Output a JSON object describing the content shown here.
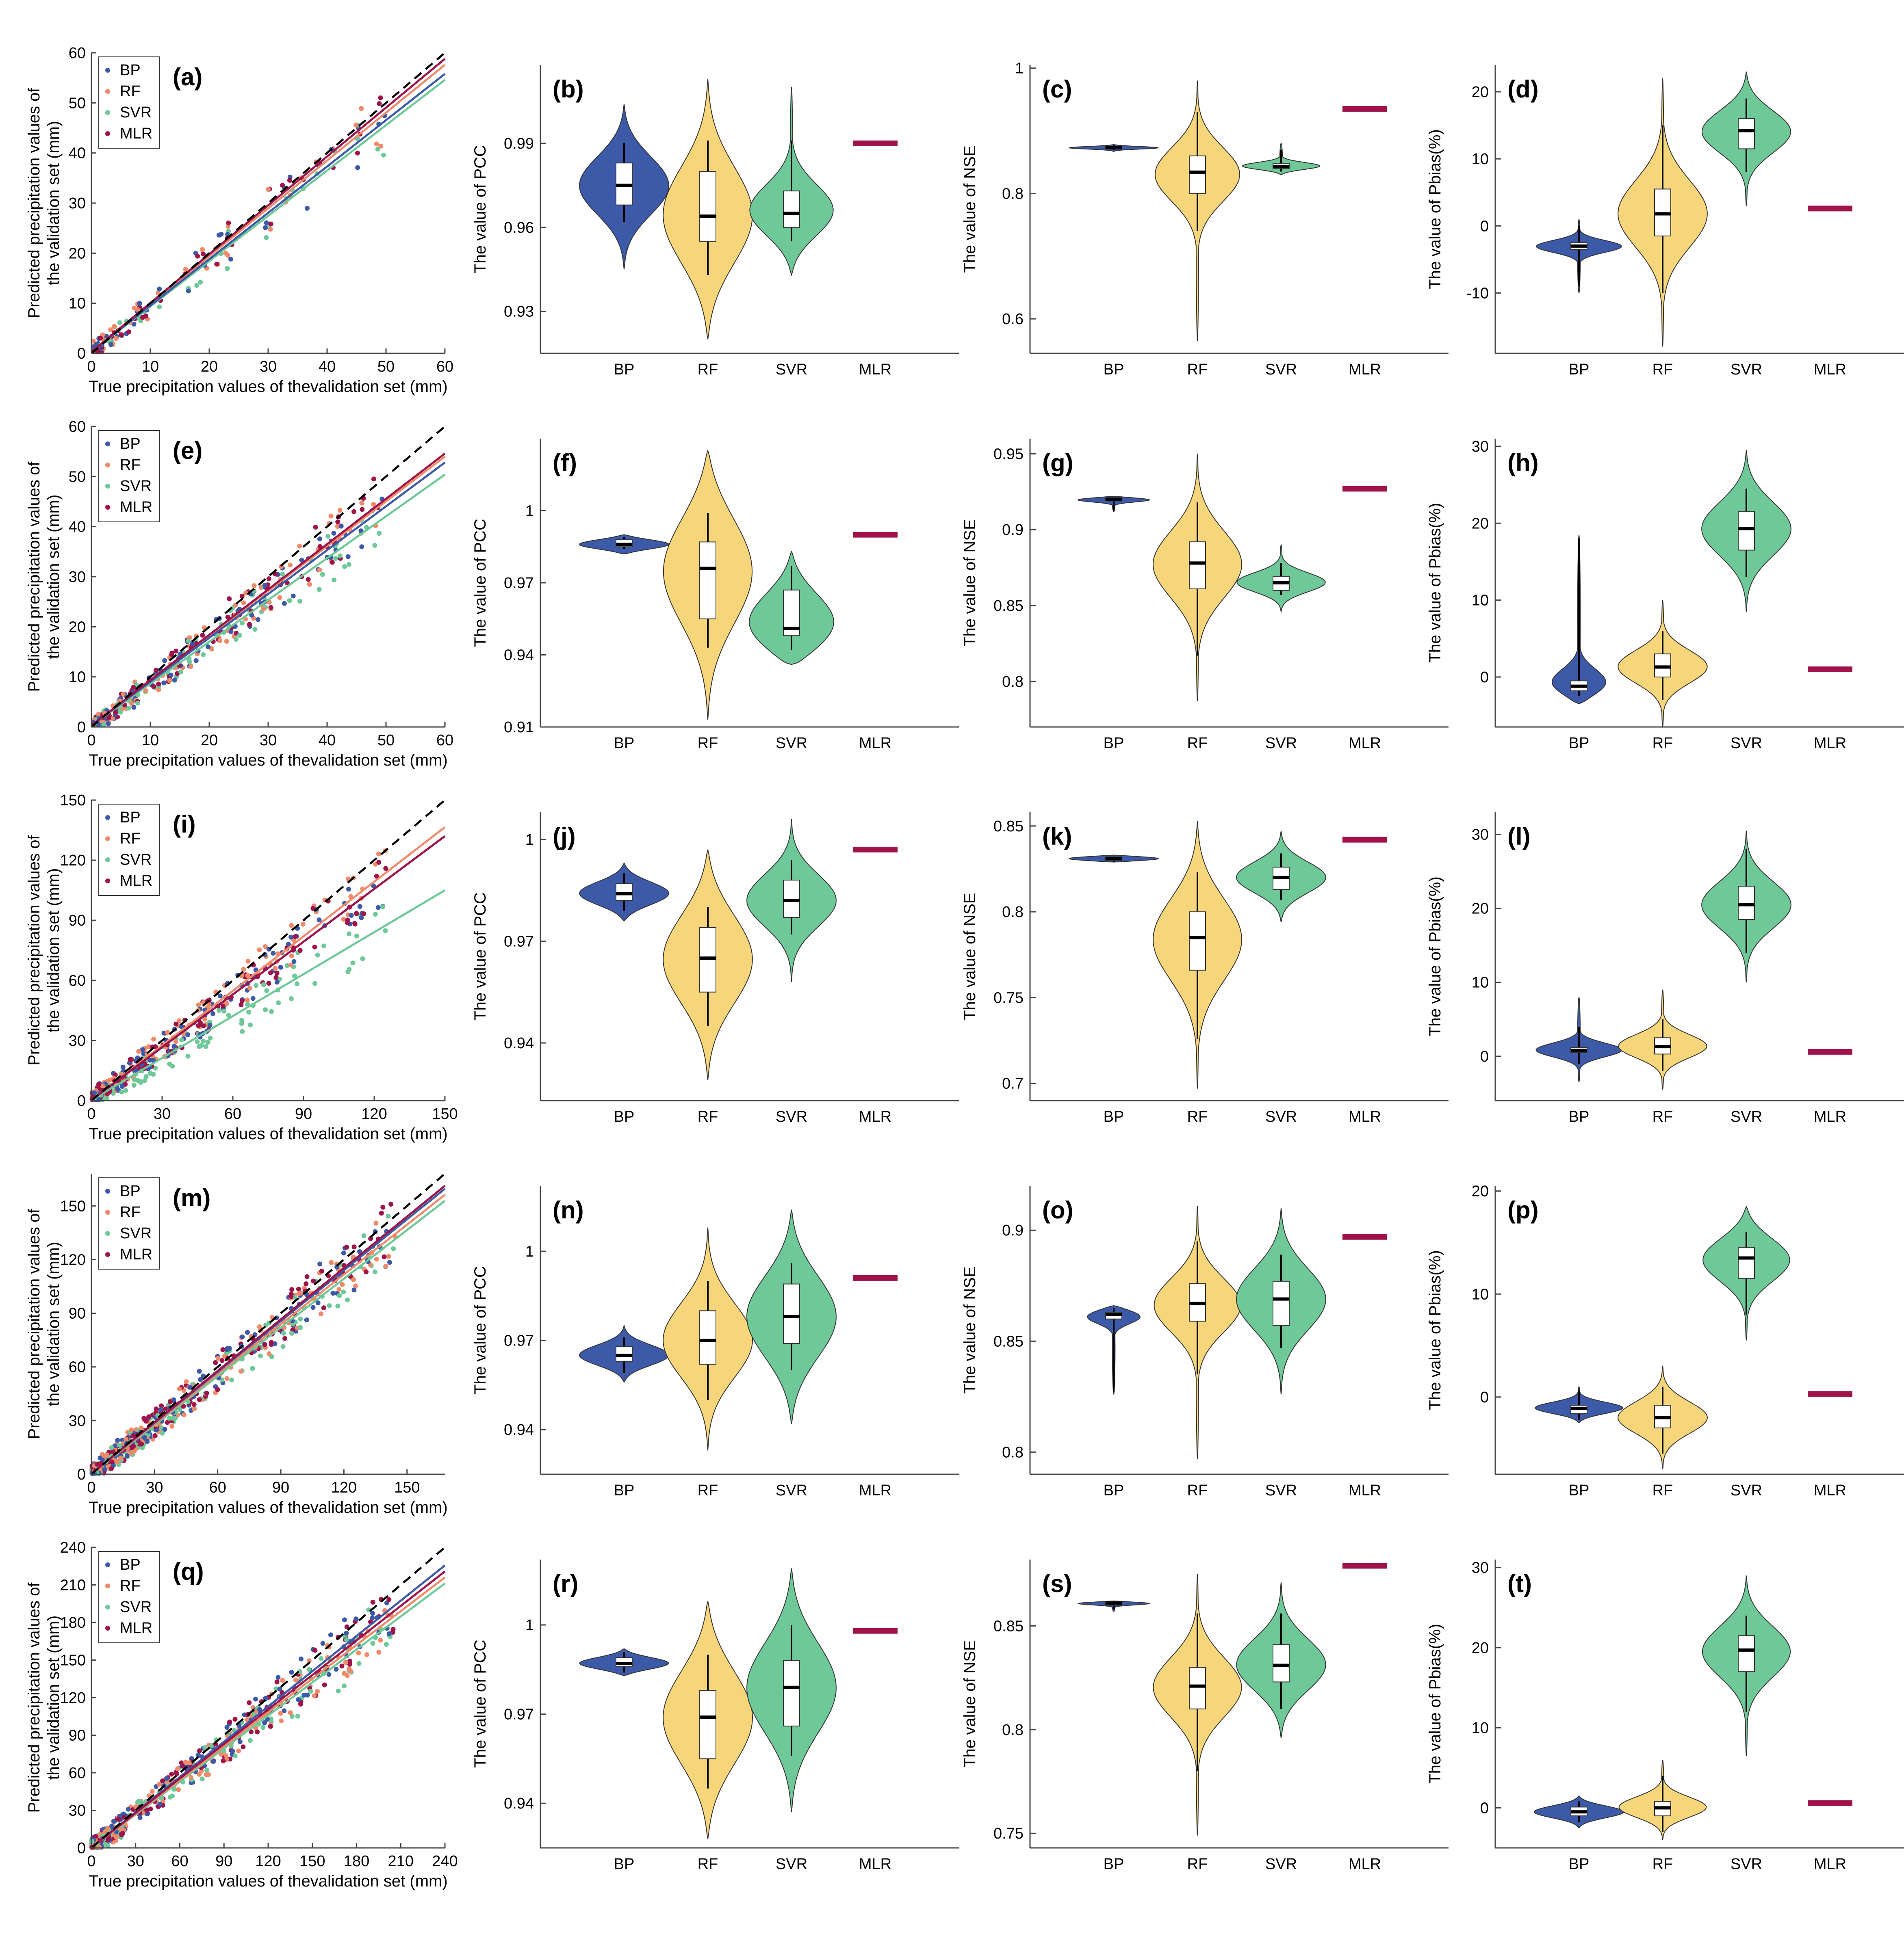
{
  "colors": {
    "BP": "#3c5aa8",
    "RF": "#f7d57a",
    "SVR": "#6ec898",
    "MLR": "#a0124a",
    "RF_scatter": "#f08a6a",
    "SVR_scatter": "#6ec898"
  },
  "chart_data": [
    {
      "type": "scatter",
      "id": "a",
      "label": "(a)",
      "xlabel": "True precipitation values of thevalidation set (mm)",
      "ylabel": [
        "Predicted precipitation values of",
        "the validation set (mm)"
      ],
      "xlim": [
        0,
        60
      ],
      "ylim": [
        0,
        60
      ],
      "ticks": [
        0,
        10,
        20,
        30,
        40,
        50,
        60
      ],
      "legend": [
        "BP",
        "RF",
        "SVR",
        "MLR"
      ],
      "fit_slopes": {
        "BP": 0.93,
        "RF": 0.96,
        "SVR": 0.91,
        "MLR": 0.98
      },
      "seed": 11,
      "n_points": 40
    },
    {
      "type": "violin",
      "id": "b",
      "label": "(b)",
      "ylabel": "The value of PCC",
      "ylim": [
        0.915,
        1.018
      ],
      "ticks": [
        0.93,
        0.96,
        0.99
      ],
      "ticklabels": [
        "0.93",
        "0.96",
        "0.99"
      ],
      "categories": [
        "BP",
        "RF",
        "SVR",
        "MLR"
      ],
      "violins": [
        {
          "cat": "BP",
          "min": 0.945,
          "max": 1.004,
          "q1": 0.968,
          "median": 0.975,
          "q3": 0.983,
          "w1": 0.962,
          "w2": 0.99
        },
        {
          "cat": "RF",
          "min": 0.92,
          "max": 1.013,
          "q1": 0.955,
          "median": 0.964,
          "q3": 0.98,
          "w1": 0.943,
          "w2": 0.991
        },
        {
          "cat": "SVR",
          "min": 0.943,
          "max": 1.01,
          "q1": 0.96,
          "median": 0.965,
          "q3": 0.973,
          "w1": 0.955,
          "w2": 0.991
        }
      ],
      "mlr": 0.99
    },
    {
      "type": "violin",
      "id": "c",
      "label": "(c)",
      "ylabel": "The value of NSE",
      "ylim": [
        0.545,
        1.005
      ],
      "ticks": [
        0.6,
        0.8,
        1
      ],
      "ticklabels": [
        "0.6",
        "0.8",
        "1"
      ],
      "categories": [
        "BP",
        "RF",
        "SVR",
        "MLR"
      ],
      "violins": [
        {
          "cat": "BP",
          "min": 0.867,
          "max": 0.878,
          "q1": 0.872,
          "median": 0.873,
          "q3": 0.875,
          "w1": 0.869,
          "w2": 0.877
        },
        {
          "cat": "RF",
          "min": 0.565,
          "max": 0.98,
          "q1": 0.8,
          "median": 0.834,
          "q3": 0.86,
          "w1": 0.74,
          "w2": 0.93
        },
        {
          "cat": "SVR",
          "min": 0.83,
          "max": 0.88,
          "q1": 0.84,
          "median": 0.843,
          "q3": 0.848,
          "w1": 0.835,
          "w2": 0.87
        }
      ],
      "mlr": 0.935
    },
    {
      "type": "violin",
      "id": "d",
      "label": "(d)",
      "ylabel": "The value of Pbias(%)",
      "ylim": [
        -19,
        24
      ],
      "ticks": [
        -10,
        0,
        10,
        20
      ],
      "ticklabels": [
        "-10",
        "0",
        "10",
        "20"
      ],
      "categories": [
        "BP",
        "RF",
        "SVR",
        "MLR"
      ],
      "violins": [
        {
          "cat": "BP",
          "min": -10,
          "max": 1,
          "q1": -3.5,
          "median": -3,
          "q3": -2.5,
          "w1": -9,
          "w2": 0
        },
        {
          "cat": "RF",
          "min": -18,
          "max": 22,
          "q1": -1.5,
          "median": 1.8,
          "q3": 5.5,
          "w1": -10,
          "w2": 15
        },
        {
          "cat": "SVR",
          "min": 3,
          "max": 23,
          "q1": 11.5,
          "median": 14.2,
          "q3": 16,
          "w1": 8,
          "w2": 19
        }
      ],
      "mlr": 2.6
    },
    {
      "type": "scatter",
      "id": "e",
      "label": "(e)",
      "xlabel": "True precipitation values of thevalidation set (mm)",
      "ylabel": [
        "Predicted precipitation values of",
        "the validation set (mm)"
      ],
      "xlim": [
        0,
        60
      ],
      "ylim": [
        0,
        60
      ],
      "ticks": [
        0,
        10,
        20,
        30,
        40,
        50,
        60
      ],
      "legend": [
        "BP",
        "RF",
        "SVR",
        "MLR"
      ],
      "fit_slopes": {
        "BP": 0.88,
        "RF": 0.9,
        "SVR": 0.84,
        "MLR": 0.91
      },
      "seed": 23,
      "n_points": 90
    },
    {
      "type": "violin",
      "id": "f",
      "label": "(f)",
      "ylabel": "The value of PCC",
      "ylim": [
        0.91,
        1.03
      ],
      "ticks": [
        0.91,
        0.94,
        0.97,
        1
      ],
      "ticklabels": [
        "0.91",
        "0.94",
        "0.97",
        "1"
      ],
      "categories": [
        "BP",
        "RF",
        "SVR",
        "MLR"
      ],
      "violins": [
        {
          "cat": "BP",
          "min": 0.982,
          "max": 0.99,
          "q1": 0.985,
          "median": 0.986,
          "q3": 0.988,
          "w1": 0.984,
          "w2": 0.989
        },
        {
          "cat": "RF",
          "min": 0.913,
          "max": 1.025,
          "q1": 0.955,
          "median": 0.976,
          "q3": 0.987,
          "w1": 0.943,
          "w2": 0.999
        },
        {
          "cat": "SVR",
          "min": 0.936,
          "max": 0.983,
          "q1": 0.948,
          "median": 0.951,
          "q3": 0.967,
          "w1": 0.942,
          "w2": 0.977
        }
      ],
      "mlr": 0.99
    },
    {
      "type": "violin",
      "id": "g",
      "label": "(g)",
      "ylabel": "The value of NSE",
      "ylim": [
        0.77,
        0.96
      ],
      "ticks": [
        0.8,
        0.85,
        0.9,
        0.95
      ],
      "ticklabels": [
        "0.8",
        "0.85",
        "0.9",
        "0.95"
      ],
      "categories": [
        "BP",
        "RF",
        "SVR",
        "MLR"
      ],
      "violins": [
        {
          "cat": "BP",
          "min": 0.912,
          "max": 0.922,
          "q1": 0.919,
          "median": 0.92,
          "q3": 0.921,
          "w1": 0.912,
          "w2": 0.921
        },
        {
          "cat": "RF",
          "min": 0.787,
          "max": 0.95,
          "q1": 0.861,
          "median": 0.878,
          "q3": 0.892,
          "w1": 0.817,
          "w2": 0.918
        },
        {
          "cat": "SVR",
          "min": 0.846,
          "max": 0.89,
          "q1": 0.86,
          "median": 0.865,
          "q3": 0.869,
          "w1": 0.857,
          "w2": 0.878
        }
      ],
      "mlr": 0.927
    },
    {
      "type": "violin",
      "id": "h",
      "label": "(h)",
      "ylabel": "The value of Pbias(%)",
      "ylim": [
        -6.5,
        31
      ],
      "ticks": [
        0,
        10,
        20,
        30
      ],
      "ticklabels": [
        "0",
        "10",
        "20",
        "30"
      ],
      "categories": [
        "BP",
        "RF",
        "SVR",
        "MLR"
      ],
      "violins": [
        {
          "cat": "BP",
          "min": -3.5,
          "max": 18.5,
          "q1": -1.8,
          "median": -1.2,
          "q3": -0.5,
          "w1": -2.5,
          "w2": 18
        },
        {
          "cat": "RF",
          "min": -6.5,
          "max": 10,
          "q1": 0,
          "median": 1.3,
          "q3": 3,
          "w1": -3,
          "w2": 6
        },
        {
          "cat": "SVR",
          "min": 8.5,
          "max": 29.5,
          "q1": 16.5,
          "median": 19.3,
          "q3": 21.5,
          "w1": 13,
          "w2": 24.5
        }
      ],
      "mlr": 1.0
    },
    {
      "type": "scatter",
      "id": "i",
      "label": "(i)",
      "xlabel": "True precipitation values of thevalidation set (mm)",
      "ylabel": [
        "Predicted precipitation values of",
        "the validation set (mm)"
      ],
      "xlim": [
        0,
        150
      ],
      "ylim": [
        0,
        150
      ],
      "ticks": [
        0,
        30,
        60,
        90,
        120,
        150
      ],
      "legend": [
        "BP",
        "RF",
        "SVR",
        "MLR"
      ],
      "fit_slopes": {
        "BP": 0.88,
        "RF": 0.91,
        "SVR": 0.7,
        "MLR": 0.88
      },
      "seed": 37,
      "n_points": 110
    },
    {
      "type": "violin",
      "id": "j",
      "label": "(j)",
      "ylabel": "The value of PCC",
      "ylim": [
        0.923,
        1.008
      ],
      "ticks": [
        0.94,
        0.97,
        1
      ],
      "ticklabels": [
        "0.94",
        "0.97",
        "1"
      ],
      "categories": [
        "BP",
        "RF",
        "SVR",
        "MLR"
      ],
      "violins": [
        {
          "cat": "BP",
          "min": 0.976,
          "max": 0.993,
          "q1": 0.982,
          "median": 0.984,
          "q3": 0.987,
          "w1": 0.979,
          "w2": 0.99
        },
        {
          "cat": "RF",
          "min": 0.929,
          "max": 0.997,
          "q1": 0.955,
          "median": 0.965,
          "q3": 0.974,
          "w1": 0.945,
          "w2": 0.98
        },
        {
          "cat": "SVR",
          "min": 0.958,
          "max": 1.006,
          "q1": 0.977,
          "median": 0.982,
          "q3": 0.988,
          "w1": 0.972,
          "w2": 0.994
        }
      ],
      "mlr": 0.997
    },
    {
      "type": "violin",
      "id": "k",
      "label": "(k)",
      "ylabel": "The value of NSE",
      "ylim": [
        0.69,
        0.858
      ],
      "ticks": [
        0.7,
        0.75,
        0.8,
        0.85
      ],
      "ticklabels": [
        "0.7",
        "0.75",
        "0.8",
        "0.85"
      ],
      "categories": [
        "BP",
        "RF",
        "SVR",
        "MLR"
      ],
      "violins": [
        {
          "cat": "BP",
          "min": 0.829,
          "max": 0.833,
          "q1": 0.83,
          "median": 0.831,
          "q3": 0.832,
          "w1": 0.829,
          "w2": 0.832
        },
        {
          "cat": "RF",
          "min": 0.697,
          "max": 0.853,
          "q1": 0.766,
          "median": 0.785,
          "q3": 0.8,
          "w1": 0.726,
          "w2": 0.823
        },
        {
          "cat": "SVR",
          "min": 0.794,
          "max": 0.847,
          "q1": 0.813,
          "median": 0.82,
          "q3": 0.826,
          "w1": 0.807,
          "w2": 0.834
        }
      ],
      "mlr": 0.842
    },
    {
      "type": "violin",
      "id": "l",
      "label": "(l)",
      "ylabel": "The value of Pbias(%)",
      "ylim": [
        -6,
        33
      ],
      "ticks": [
        0,
        10,
        20,
        30
      ],
      "ticklabels": [
        "0",
        "10",
        "20",
        "30"
      ],
      "categories": [
        "BP",
        "RF",
        "SVR",
        "MLR"
      ],
      "violins": [
        {
          "cat": "BP",
          "min": -3.5,
          "max": 8,
          "q1": 0.5,
          "median": 0.8,
          "q3": 1.2,
          "w1": -1,
          "w2": 4
        },
        {
          "cat": "RF",
          "min": -4.5,
          "max": 9,
          "q1": 0.3,
          "median": 1.3,
          "q3": 2.5,
          "w1": -2,
          "w2": 5
        },
        {
          "cat": "SVR",
          "min": 10,
          "max": 30.5,
          "q1": 18.5,
          "median": 20.5,
          "q3": 23,
          "w1": 14,
          "w2": 28
        }
      ],
      "mlr": 0.6
    },
    {
      "type": "scatter",
      "id": "m",
      "label": "(m)",
      "xlabel": "True precipitation values of thevalidation set (mm)",
      "ylabel": [
        "Predicted precipitation values of",
        "the validation set (mm)"
      ],
      "xlim": [
        0,
        168
      ],
      "ylim": [
        0,
        168
      ],
      "ticks": [
        0,
        30,
        60,
        90,
        120,
        150
      ],
      "legend": [
        "BP",
        "RF",
        "SVR",
        "MLR"
      ],
      "fit_slopes": {
        "BP": 0.95,
        "RF": 0.93,
        "SVR": 0.91,
        "MLR": 0.96
      },
      "seed": 53,
      "n_points": 150
    },
    {
      "type": "violin",
      "id": "n",
      "label": "(n)",
      "ylabel": "The value of PCC",
      "ylim": [
        0.925,
        1.022
      ],
      "ticks": [
        0.94,
        0.97,
        1
      ],
      "ticklabels": [
        "0.94",
        "0.97",
        "1"
      ],
      "categories": [
        "BP",
        "RF",
        "SVR",
        "MLR"
      ],
      "violins": [
        {
          "cat": "BP",
          "min": 0.956,
          "max": 0.975,
          "q1": 0.963,
          "median": 0.965,
          "q3": 0.968,
          "w1": 0.959,
          "w2": 0.971
        },
        {
          "cat": "RF",
          "min": 0.933,
          "max": 1.008,
          "q1": 0.962,
          "median": 0.97,
          "q3": 0.98,
          "w1": 0.95,
          "w2": 0.99
        },
        {
          "cat": "SVR",
          "min": 0.942,
          "max": 1.014,
          "q1": 0.969,
          "median": 0.978,
          "q3": 0.989,
          "w1": 0.96,
          "w2": 0.996
        }
      ],
      "mlr": 0.991
    },
    {
      "type": "violin",
      "id": "o",
      "label": "(o)",
      "ylabel": "The value of NSE",
      "ylim": [
        0.79,
        0.92
      ],
      "ticks": [
        0.8,
        0.85,
        0.9
      ],
      "ticklabels": [
        "0.8",
        "0.85",
        "0.9"
      ],
      "categories": [
        "BP",
        "RF",
        "SVR",
        "MLR"
      ],
      "violins": [
        {
          "cat": "BP",
          "min": 0.826,
          "max": 0.866,
          "q1": 0.86,
          "median": 0.862,
          "q3": 0.863,
          "w1": 0.827,
          "w2": 0.865
        },
        {
          "cat": "RF",
          "min": 0.797,
          "max": 0.911,
          "q1": 0.859,
          "median": 0.867,
          "q3": 0.876,
          "w1": 0.835,
          "w2": 0.895
        },
        {
          "cat": "SVR",
          "min": 0.826,
          "max": 0.91,
          "q1": 0.857,
          "median": 0.869,
          "q3": 0.877,
          "w1": 0.847,
          "w2": 0.889
        }
      ],
      "mlr": 0.897
    },
    {
      "type": "violin",
      "id": "p",
      "label": "(p)",
      "ylabel": "The value of Pbias(%)",
      "ylim": [
        -7.5,
        20.5
      ],
      "ticks": [
        0,
        10,
        20
      ],
      "ticklabels": [
        "0",
        "10",
        "20"
      ],
      "categories": [
        "BP",
        "RF",
        "SVR",
        "MLR"
      ],
      "violins": [
        {
          "cat": "BP",
          "min": -2.5,
          "max": 1,
          "q1": -1.6,
          "median": -1.1,
          "q3": -0.8,
          "w1": -2.2,
          "w2": 0.7
        },
        {
          "cat": "RF",
          "min": -7,
          "max": 3,
          "q1": -3,
          "median": -2,
          "q3": -0.8,
          "w1": -5.5,
          "w2": 1
        },
        {
          "cat": "SVR",
          "min": 5.5,
          "max": 18.5,
          "q1": 11.5,
          "median": 13.5,
          "q3": 14.5,
          "w1": 8,
          "w2": 16
        }
      ],
      "mlr": 0.3
    },
    {
      "type": "scatter",
      "id": "q",
      "label": "(q)",
      "xlabel": "True precipitation values of thevalidation set (mm)",
      "ylabel": [
        "Predicted precipitation values of",
        "the validation set (mm)"
      ],
      "xlim": [
        0,
        240
      ],
      "ylim": [
        0,
        240
      ],
      "ticks": [
        0,
        30,
        60,
        90,
        120,
        150,
        180,
        210,
        240
      ],
      "legend": [
        "BP",
        "RF",
        "SVR",
        "MLR"
      ],
      "fit_slopes": {
        "BP": 0.94,
        "RF": 0.9,
        "SVR": 0.88,
        "MLR": 0.92
      },
      "seed": 71,
      "n_points": 140
    },
    {
      "type": "violin",
      "id": "r",
      "label": "(r)",
      "ylabel": "The value of PCC",
      "ylim": [
        0.925,
        1.022
      ],
      "ticks": [
        0.94,
        0.97,
        1
      ],
      "ticklabels": [
        "0.94",
        "0.97",
        "1"
      ],
      "categories": [
        "BP",
        "RF",
        "SVR",
        "MLR"
      ],
      "violins": [
        {
          "cat": "BP",
          "min": 0.983,
          "max": 0.992,
          "q1": 0.986,
          "median": 0.987,
          "q3": 0.989,
          "w1": 0.984,
          "w2": 0.991
        },
        {
          "cat": "RF",
          "min": 0.928,
          "max": 1.008,
          "q1": 0.955,
          "median": 0.969,
          "q3": 0.978,
          "w1": 0.945,
          "w2": 0.99
        },
        {
          "cat": "SVR",
          "min": 0.937,
          "max": 1.019,
          "q1": 0.966,
          "median": 0.979,
          "q3": 0.988,
          "w1": 0.956,
          "w2": 1.0
        }
      ],
      "mlr": 0.998
    },
    {
      "type": "violin",
      "id": "s",
      "label": "(s)",
      "ylabel": "The value of NSE",
      "ylim": [
        0.743,
        0.882
      ],
      "ticks": [
        0.75,
        0.8,
        0.85
      ],
      "ticklabels": [
        "0.75",
        "0.8",
        "0.85"
      ],
      "categories": [
        "BP",
        "RF",
        "SVR",
        "MLR"
      ],
      "violins": [
        {
          "cat": "BP",
          "min": 0.857,
          "max": 0.862,
          "q1": 0.86,
          "median": 0.861,
          "q3": 0.861,
          "w1": 0.858,
          "w2": 0.862
        },
        {
          "cat": "RF",
          "min": 0.749,
          "max": 0.875,
          "q1": 0.81,
          "median": 0.821,
          "q3": 0.83,
          "w1": 0.78,
          "w2": 0.856
        },
        {
          "cat": "SVR",
          "min": 0.796,
          "max": 0.871,
          "q1": 0.823,
          "median": 0.831,
          "q3": 0.841,
          "w1": 0.81,
          "w2": 0.856
        }
      ],
      "mlr": 0.879
    },
    {
      "type": "violin",
      "id": "t",
      "label": "(t)",
      "ylabel": "The value of Pbias(%)",
      "ylim": [
        -5,
        31
      ],
      "ticks": [
        0,
        10,
        20,
        30
      ],
      "ticklabels": [
        "0",
        "10",
        "20",
        "30"
      ],
      "categories": [
        "BP",
        "RF",
        "SVR",
        "MLR"
      ],
      "violins": [
        {
          "cat": "BP",
          "min": -2.5,
          "max": 1.5,
          "q1": -1,
          "median": -0.5,
          "q3": 0.1,
          "w1": -1.8,
          "w2": 0.8
        },
        {
          "cat": "RF",
          "min": -4,
          "max": 6,
          "q1": -1,
          "median": 0,
          "q3": 0.8,
          "w1": -3,
          "w2": 4
        },
        {
          "cat": "SVR",
          "min": 6.5,
          "max": 29,
          "q1": 17,
          "median": 19.7,
          "q3": 21.5,
          "w1": 12,
          "w2": 24
        }
      ],
      "mlr": 0.6
    }
  ]
}
